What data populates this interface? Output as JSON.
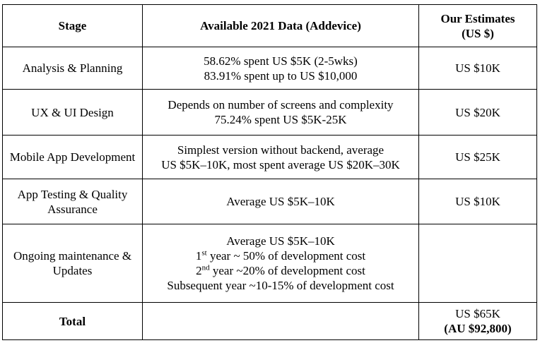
{
  "table": {
    "headers": {
      "stage": "Stage",
      "data": "Available 2021 Data (Addevice)",
      "estimates_line1": "Our Estimates",
      "estimates_line2": "(US $)"
    },
    "rows": [
      {
        "stage": "Analysis & Planning",
        "data": [
          "58.62% spent US $5K (2-5wks)",
          "83.91% spent up to US $10,000"
        ],
        "estimate": "US $10K"
      },
      {
        "stage": "UX & UI Design",
        "data": [
          "Depends on number of screens and complexity",
          "75.24% spent US $5K-25K"
        ],
        "estimate": "US $20K"
      },
      {
        "stage": "Mobile App Development",
        "data": [
          "Simplest version without backend, average",
          "US $5K–10K, most spent average US $20K–30K"
        ],
        "estimate": "US $25K"
      },
      {
        "stage_line1": "App Testing & Quality",
        "stage_line2": "Assurance",
        "data": [
          "Average US $5K–10K"
        ],
        "estimate": "US $10K"
      },
      {
        "stage_line1": "Ongoing maintenance &",
        "stage_line2": "Updates",
        "data_line1": "Average US $5K–10K",
        "data_line2_pre": "1",
        "data_line2_sup": "st",
        "data_line2_post": " year ~ 50% of development cost",
        "data_line3_pre": "2",
        "data_line3_sup": "nd",
        "data_line3_post": " year ~20% of development cost",
        "data_line4": "Subsequent year ~10-15% of development cost",
        "estimate": ""
      }
    ],
    "total": {
      "label": "Total",
      "data": "",
      "estimate_line1": "US $65K",
      "estimate_line2": "(AU $92,800)"
    }
  }
}
